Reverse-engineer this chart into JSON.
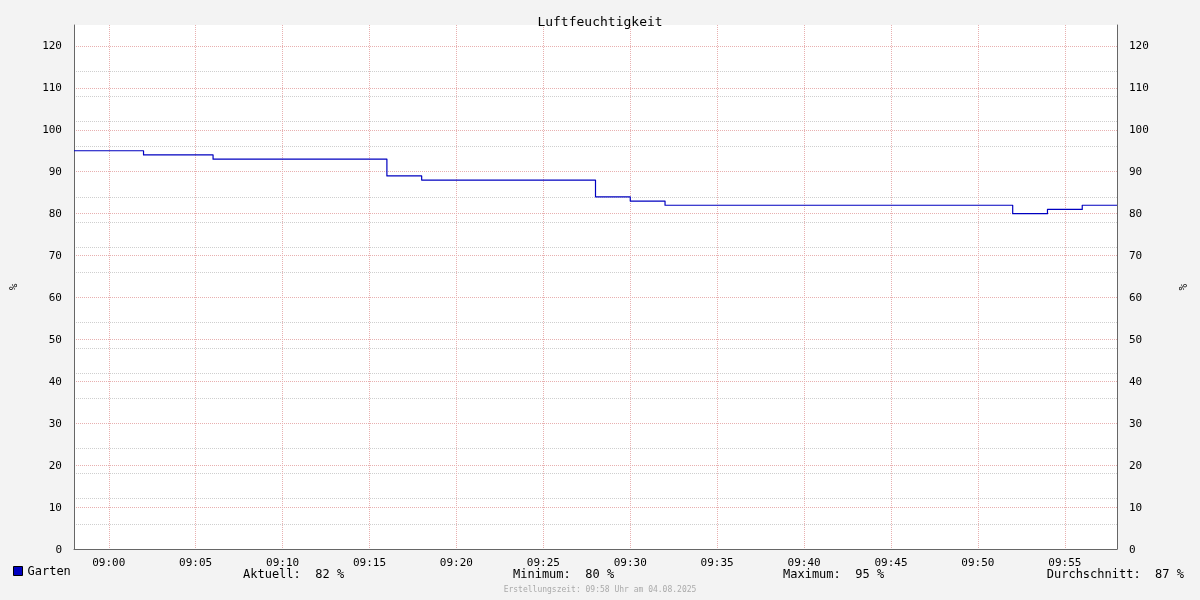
{
  "chart_data": {
    "type": "step",
    "title": "Luftfeuchtigkeit",
    "ylabel": "%",
    "y2label": "%",
    "x": [
      "2025-08-04T08:58",
      "2025-08-04T09:02",
      "2025-08-04T09:06",
      "2025-08-04T09:16",
      "2025-08-04T09:18",
      "2025-08-04T09:28",
      "2025-08-04T09:30",
      "2025-08-04T09:32",
      "2025-08-04T09:52",
      "2025-08-04T09:54",
      "2025-08-04T09:56",
      "2025-08-04T09:58"
    ],
    "series": [
      {
        "name": "Garten",
        "color": "#0000c0",
        "values": [
          95,
          94,
          93,
          89,
          88,
          84,
          83,
          82,
          80,
          81,
          82,
          82
        ]
      }
    ],
    "xlim": [
      "2025-08-04T08:58",
      "2025-08-04T09:58"
    ],
    "xticks": [
      {
        "value": "2025-08-04T09:00",
        "label": "09:00"
      },
      {
        "value": "2025-08-04T09:05",
        "label": "09:05"
      },
      {
        "value": "2025-08-04T09:10",
        "label": "09:10"
      },
      {
        "value": "2025-08-04T09:15",
        "label": "09:15"
      },
      {
        "value": "2025-08-04T09:20",
        "label": "09:20"
      },
      {
        "value": "2025-08-04T09:25",
        "label": "09:25"
      },
      {
        "value": "2025-08-04T09:30",
        "label": "09:30"
      },
      {
        "value": "2025-08-04T09:35",
        "label": "09:35"
      },
      {
        "value": "2025-08-04T09:40",
        "label": "09:40"
      },
      {
        "value": "2025-08-04T09:45",
        "label": "09:45"
      },
      {
        "value": "2025-08-04T09:50",
        "label": "09:50"
      },
      {
        "value": "2025-08-04T09:55",
        "label": "09:55"
      }
    ],
    "ylim": [
      0,
      125
    ],
    "yticks": [
      0,
      10,
      20,
      30,
      40,
      50,
      60,
      70,
      80,
      90,
      100,
      110,
      120
    ],
    "y2lim": [
      0,
      125
    ],
    "y2ticks": [
      0,
      10,
      20,
      30,
      40,
      50,
      60,
      70,
      80,
      90,
      100,
      110,
      120
    ],
    "grid": true,
    "legend": "bottom left",
    "marker": "none",
    "line_style": "solid",
    "annotations": [
      "Aktuell:  82 %",
      "Minimum:  80 %",
      "Maximum:  95 %",
      "Durchschnitt:  87 %",
      "Erstellungszeit: 09:58 Uhr am 04.08.2025"
    ]
  }
}
